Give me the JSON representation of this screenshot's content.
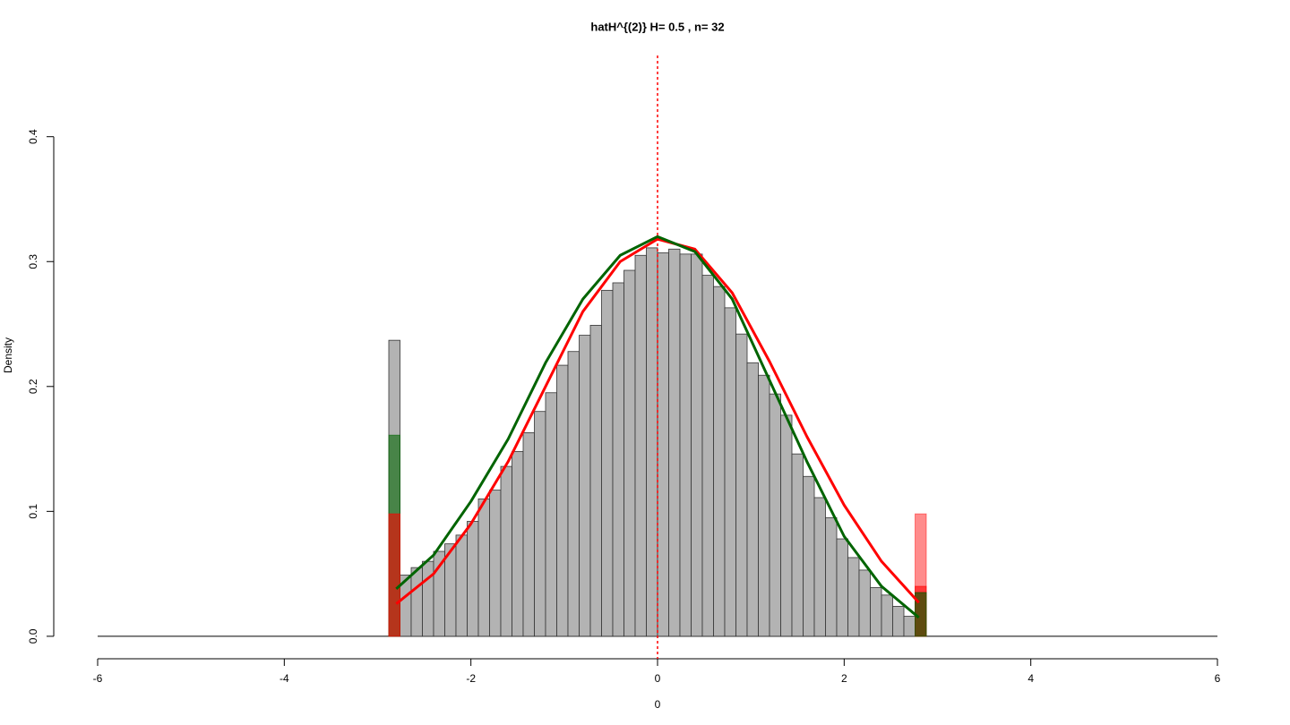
{
  "chart_data": {
    "type": "histogram",
    "title": "hatH^{(2)} H= 0.5 , n= 32",
    "x_label": "0",
    "y_label": "Density",
    "bins": [
      -2.88,
      -2.76,
      -2.64,
      -2.52,
      -2.4,
      -2.28,
      -2.16,
      -2.04,
      -1.92,
      -1.8,
      -1.68,
      -1.56,
      -1.44,
      -1.32,
      -1.2,
      -1.08,
      -0.96,
      -0.84,
      -0.72,
      -0.6,
      -0.48,
      -0.36,
      -0.24,
      -0.12,
      0,
      0.12,
      0.24,
      0.36,
      0.48,
      0.6,
      0.72,
      0.84,
      0.96,
      1.08,
      1.2,
      1.32,
      1.44,
      1.56,
      1.68,
      1.8,
      1.92,
      2.04,
      2.16,
      2.28,
      2.4,
      2.52,
      2.64,
      2.76,
      2.88
    ],
    "values": [
      0.237,
      0.049,
      0.055,
      0.06,
      0.068,
      0.074,
      0.081,
      0.092,
      0.11,
      0.117,
      0.136,
      0.148,
      0.163,
      0.18,
      0.195,
      0.217,
      0.228,
      0.241,
      0.249,
      0.277,
      0.283,
      0.293,
      0.305,
      0.311,
      0.307,
      0.31,
      0.306,
      0.306,
      0.289,
      0.28,
      0.263,
      0.242,
      0.219,
      0.209,
      0.194,
      0.177,
      0.146,
      0.128,
      0.111,
      0.095,
      0.078,
      0.063,
      0.053,
      0.039,
      0.033,
      0.024,
      0.016,
      0.035
    ],
    "color": "#b3b3b3",
    "overlay_bars": [
      {
        "x": [
          -2.88,
          -2.76
        ],
        "value": 0.161,
        "color": "rgba(0,100,0,0.6)"
      },
      {
        "x": [
          -2.88,
          -2.76
        ],
        "value": 0.098,
        "color": "rgba(255,0,0,0.6)"
      },
      {
        "x": [
          2.76,
          2.88
        ],
        "value": 0.098,
        "color": "rgba(255,0,0,0.45)"
      },
      {
        "x": [
          2.76,
          2.88
        ],
        "value": 0.04,
        "color": "rgba(255,0,0,0.6)"
      },
      {
        "x": [
          2.76,
          2.88
        ],
        "value": 0.035,
        "color": "rgba(0,100,0,0.6)"
      }
    ],
    "curves": [
      {
        "color": "#ff0000",
        "x": [
          -2.8,
          -2.4,
          -2.0,
          -1.6,
          -1.2,
          -0.8,
          -0.4,
          0,
          0.4,
          0.8,
          1.2,
          1.6,
          2.0,
          2.4,
          2.8
        ],
        "y": [
          0.026,
          0.05,
          0.09,
          0.14,
          0.2,
          0.26,
          0.3,
          0.318,
          0.31,
          0.275,
          0.22,
          0.16,
          0.105,
          0.06,
          0.027
        ]
      },
      {
        "color": "#006400",
        "x": [
          -2.8,
          -2.4,
          -2.0,
          -1.6,
          -1.2,
          -0.8,
          -0.4,
          0,
          0.4,
          0.8,
          1.2,
          1.6,
          2.0,
          2.4,
          2.8
        ],
        "y": [
          0.038,
          0.065,
          0.108,
          0.158,
          0.219,
          0.27,
          0.305,
          0.32,
          0.308,
          0.27,
          0.205,
          0.14,
          0.08,
          0.04,
          0.015
        ]
      }
    ],
    "vline": {
      "x": 0,
      "color": "#ff0000"
    },
    "hline": 0,
    "xlim": [
      -6,
      6
    ],
    "ylim": [
      -0.018,
      0.465
    ],
    "xticks": [
      -6,
      -4,
      -2,
      0,
      2,
      4,
      6
    ],
    "yticks": [
      {
        "value": 0,
        "label": "0.0"
      },
      0.1,
      0.2,
      0.3,
      0.4
    ]
  }
}
